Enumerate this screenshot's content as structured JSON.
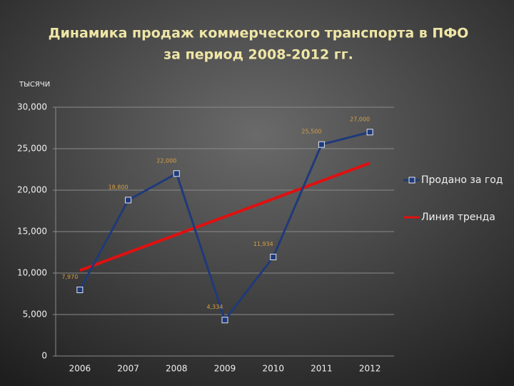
{
  "chart_data": {
    "type": "line",
    "title": [
      "Динамика продаж коммерческого транспорта в ПФО",
      "за период 2008-2012 гг."
    ],
    "y_label": "ТЫСЯЧИ",
    "categories": [
      "2006",
      "2007",
      "2008",
      "2009",
      "2010",
      "2011",
      "2012"
    ],
    "series": [
      {
        "name": "Продано за год",
        "color": "#1f3a7a",
        "values": [
          7970,
          18800,
          22000,
          4334,
          11934,
          25500,
          27000
        ],
        "value_labels": [
          "7,970",
          "18,800",
          "22,000",
          "4,334",
          "11,934",
          "25,500",
          "27,000"
        ]
      },
      {
        "name": "Линия тренда",
        "color": "#e01010",
        "values": [
          10317,
          12475,
          14633,
          16791,
          18949,
          21107,
          23265
        ]
      }
    ],
    "ylim": [
      0,
      30000
    ],
    "yticks": [
      0,
      {
        "value": 5000,
        "label": "5,000"
      },
      {
        "value": 10000,
        "label": "10,000"
      },
      {
        "value": 15000,
        "label": "15,000"
      },
      {
        "value": 20000,
        "label": "20,000"
      },
      {
        "value": 25000,
        "label": "25,000"
      },
      {
        "value": 30000,
        "label": "30,000"
      }
    ],
    "grid": true,
    "legend": "right"
  }
}
